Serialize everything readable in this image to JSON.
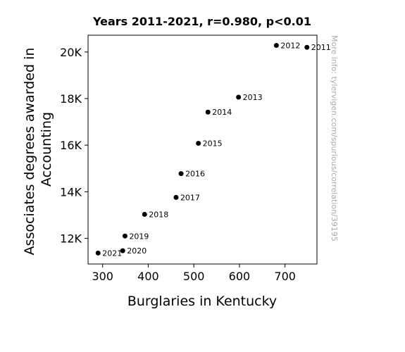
{
  "chart_data": {
    "type": "scatter",
    "title": "Years 2011-2021, r=0.980, p<0.01",
    "xlabel": "Burglaries in Kentucky",
    "ylabel_lines": [
      "Associates degrees awarded in",
      "Accounting"
    ],
    "xlim": [
      268,
      770
    ],
    "ylim": [
      10900,
      20720
    ],
    "xticks": [
      300,
      400,
      500,
      600,
      700
    ],
    "xtick_labels": [
      "300",
      "400",
      "500",
      "600",
      "700"
    ],
    "yticks": [
      12000,
      14000,
      16000,
      18000,
      20000
    ],
    "ytick_labels": [
      "12K",
      "14K",
      "16K",
      "18K",
      "20K"
    ],
    "grid": false,
    "points": [
      {
        "label": "2011",
        "x": 748,
        "y": 20200
      },
      {
        "label": "2012",
        "x": 681,
        "y": 20280
      },
      {
        "label": "2013",
        "x": 598,
        "y": 18060
      },
      {
        "label": "2014",
        "x": 531,
        "y": 17420
      },
      {
        "label": "2015",
        "x": 510,
        "y": 16080
      },
      {
        "label": "2016",
        "x": 472,
        "y": 14780
      },
      {
        "label": "2017",
        "x": 461,
        "y": 13760
      },
      {
        "label": "2018",
        "x": 392,
        "y": 13030
      },
      {
        "label": "2019",
        "x": 349,
        "y": 12100
      },
      {
        "label": "2020",
        "x": 344,
        "y": 11470
      },
      {
        "label": "2021",
        "x": 290,
        "y": 11370
      }
    ],
    "marker_color": "#000000"
  },
  "watermark": "More info: tylervigen.com/spurious/correlation/39195"
}
